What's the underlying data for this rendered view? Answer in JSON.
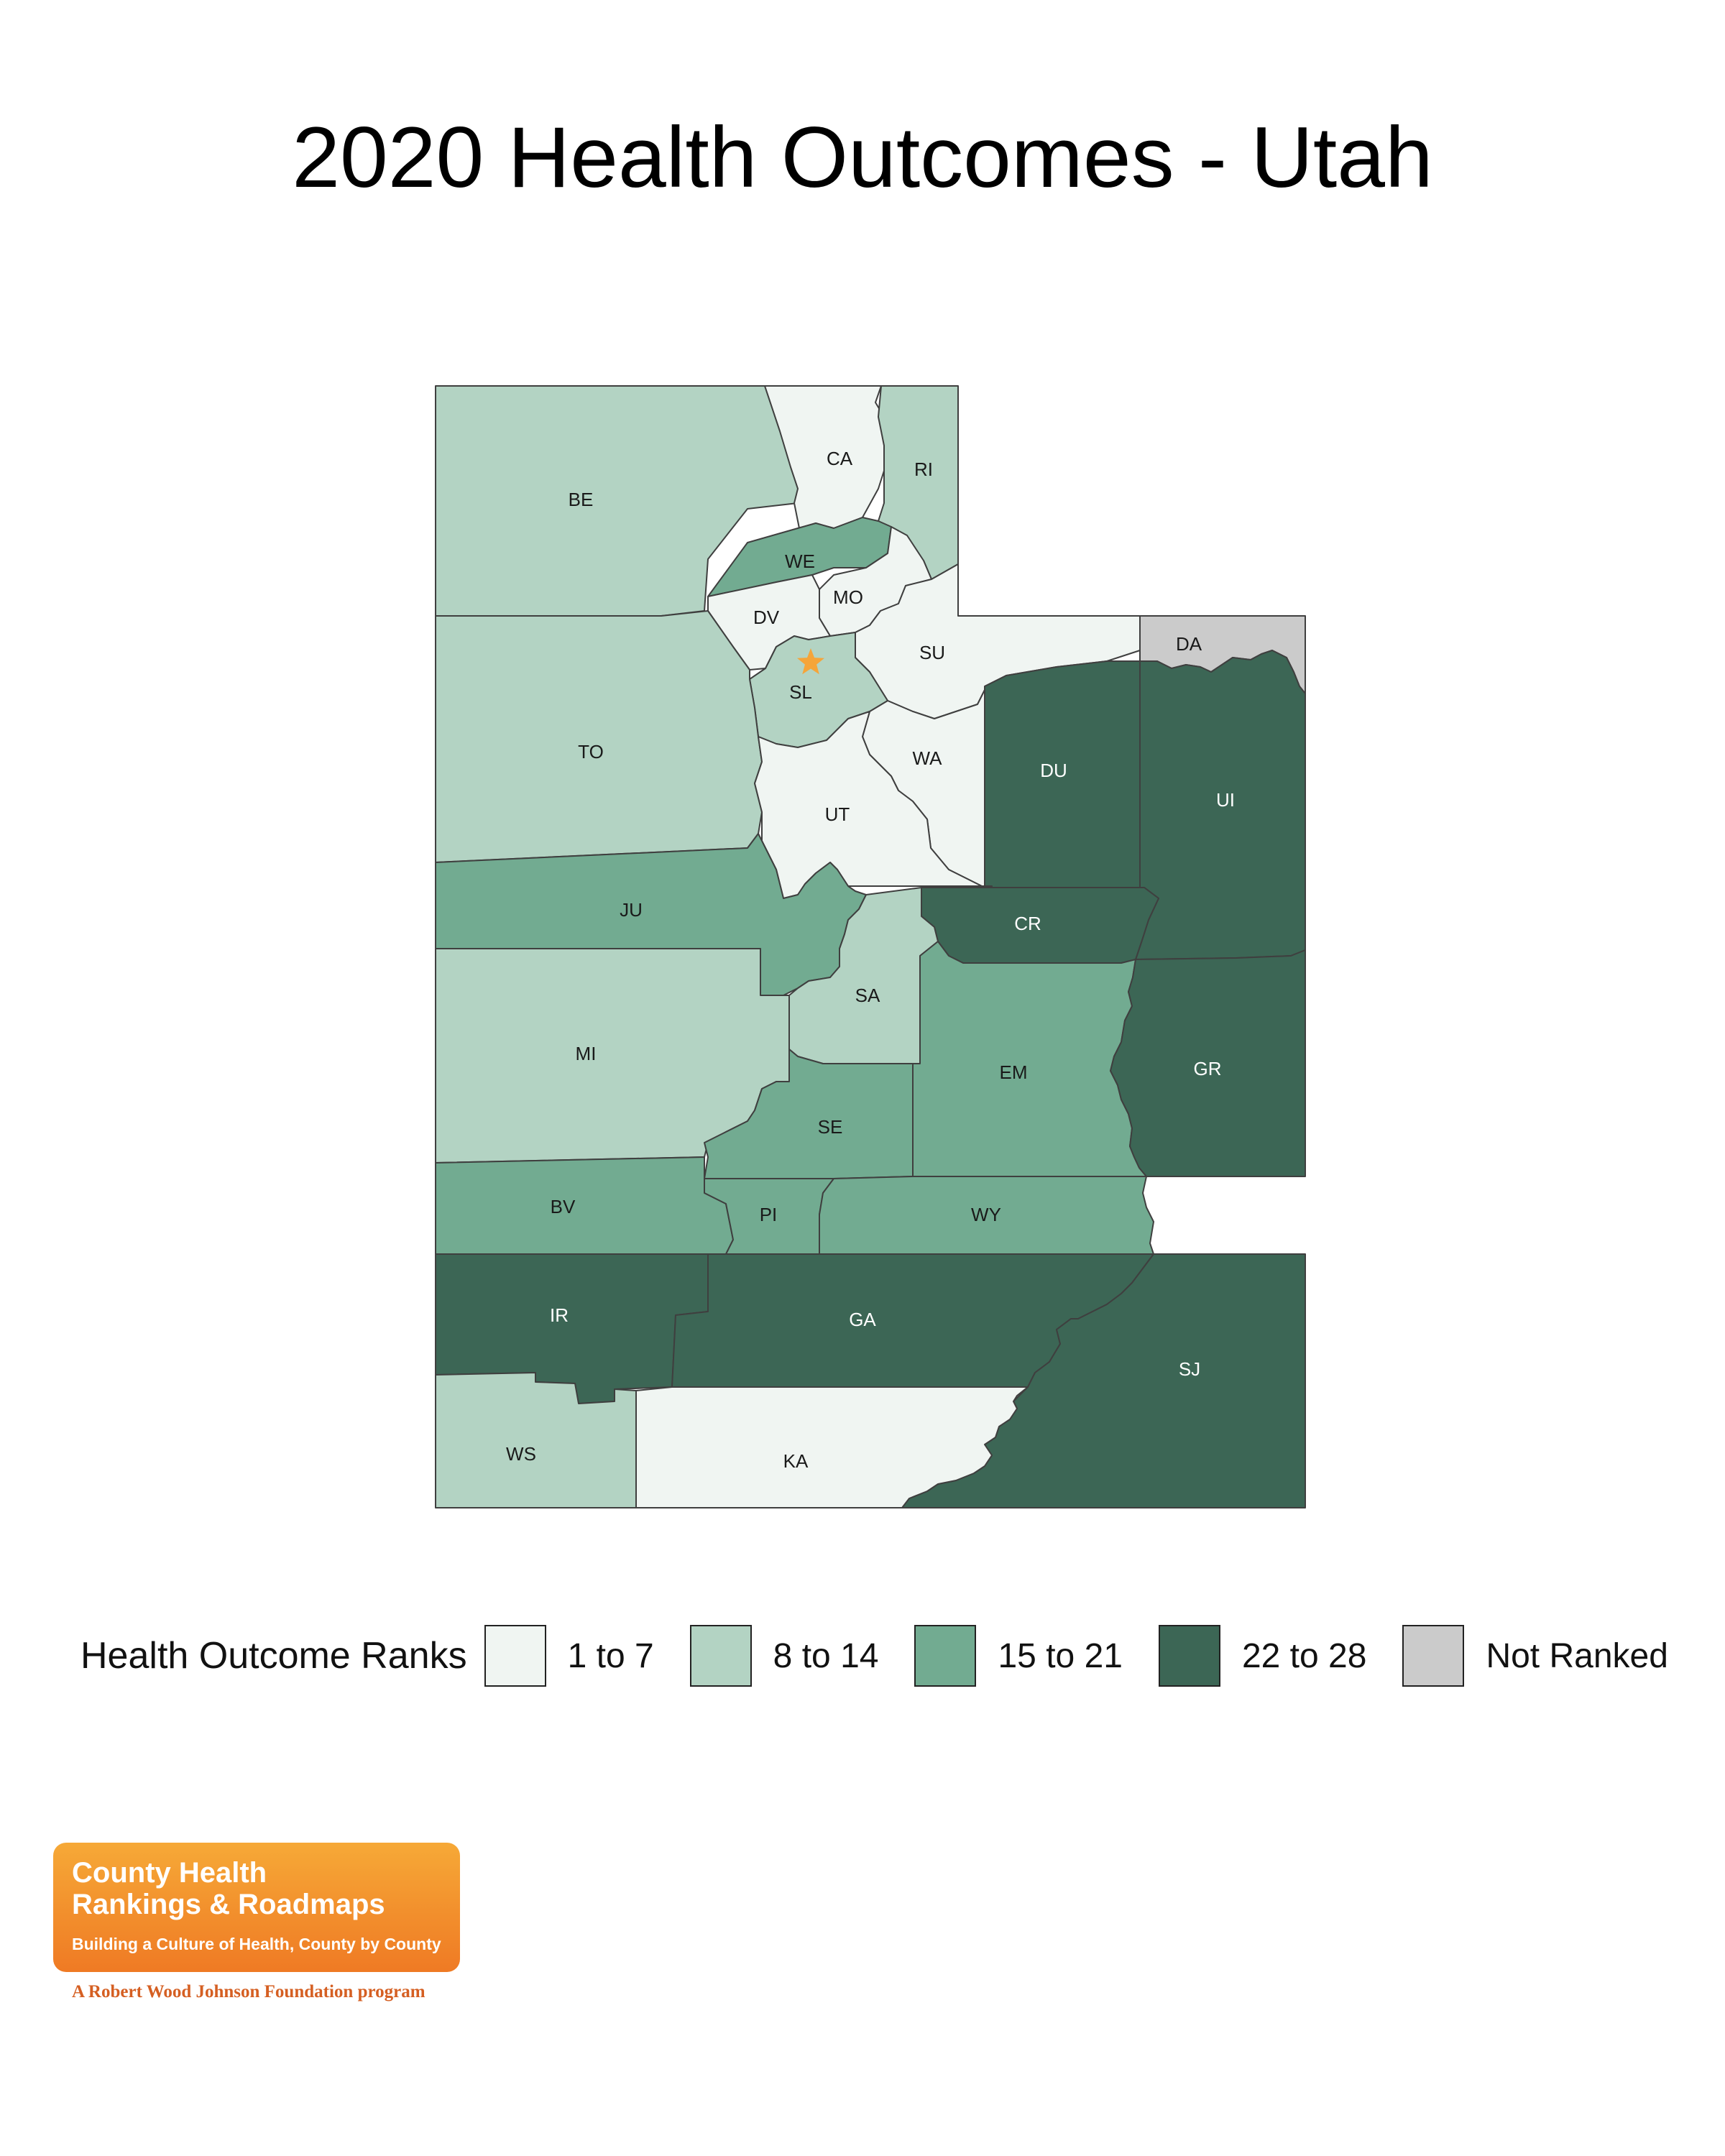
{
  "title": "2020 Health Outcomes - Utah",
  "colors": {
    "rank_1_7": "#f0f5f2",
    "rank_8_14": "#b3d3c3",
    "rank_15_21": "#72ab91",
    "rank_22_28": "#3c6655",
    "not_ranked": "#cbcbcb",
    "star": "#f5a53a",
    "logo_orange": "#f28a2b"
  },
  "legend": {
    "title": "Health Outcome Ranks",
    "items": [
      {
        "label": "1 to 7",
        "color": "#f0f5f2"
      },
      {
        "label": "8 to 14",
        "color": "#b3d3c3"
      },
      {
        "label": "15 to 21",
        "color": "#72ab91"
      },
      {
        "label": "22 to 28",
        "color": "#3c6655"
      },
      {
        "label": "Not Ranked",
        "color": "#cbcbcb"
      }
    ]
  },
  "counties": [
    {
      "code": "BE",
      "group": "8 to 14"
    },
    {
      "code": "CA",
      "group": "1 to 7"
    },
    {
      "code": "RI",
      "group": "8 to 14"
    },
    {
      "code": "WE",
      "group": "15 to 21"
    },
    {
      "code": "MO",
      "group": "1 to 7"
    },
    {
      "code": "DV",
      "group": "1 to 7"
    },
    {
      "code": "SU",
      "group": "1 to 7"
    },
    {
      "code": "DA",
      "group": "Not Ranked"
    },
    {
      "code": "SL",
      "group": "8 to 14"
    },
    {
      "code": "TO",
      "group": "8 to 14"
    },
    {
      "code": "WA",
      "group": "1 to 7"
    },
    {
      "code": "DU",
      "group": "22 to 28"
    },
    {
      "code": "UI",
      "group": "22 to 28"
    },
    {
      "code": "UT",
      "group": "1 to 7"
    },
    {
      "code": "JU",
      "group": "15 to 21"
    },
    {
      "code": "CR",
      "group": "22 to 28"
    },
    {
      "code": "SA",
      "group": "8 to 14"
    },
    {
      "code": "MI",
      "group": "8 to 14"
    },
    {
      "code": "EM",
      "group": "15 to 21"
    },
    {
      "code": "GR",
      "group": "22 to 28"
    },
    {
      "code": "SE",
      "group": "15 to 21"
    },
    {
      "code": "BV",
      "group": "15 to 21"
    },
    {
      "code": "PI",
      "group": "15 to 21"
    },
    {
      "code": "WY",
      "group": "15 to 21"
    },
    {
      "code": "IR",
      "group": "22 to 28"
    },
    {
      "code": "GA",
      "group": "22 to 28"
    },
    {
      "code": "SJ",
      "group": "22 to 28"
    },
    {
      "code": "WS",
      "group": "8 to 14"
    },
    {
      "code": "KA",
      "group": "1 to 7"
    }
  ],
  "star_marker": {
    "icon": "star-icon",
    "near_county": "SL"
  },
  "logo": {
    "line1": "County Health",
    "line2": "Rankings & Roadmaps",
    "line3": "Building a Culture of Health, County by County",
    "sub": "A Robert Wood Johnson Foundation program"
  }
}
